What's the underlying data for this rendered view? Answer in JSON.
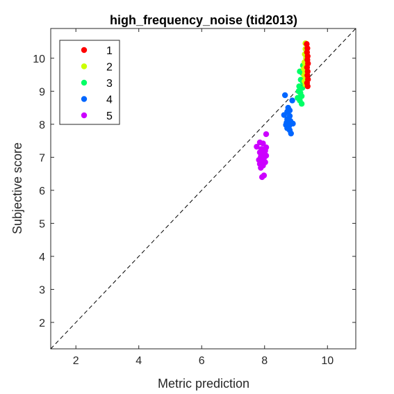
{
  "chart_data": {
    "type": "scatter",
    "title": "high_frequency_noise (tid2013)",
    "xlabel": "Metric prediction",
    "ylabel": "Subjective score",
    "xlim": [
      1.2,
      10.9
    ],
    "ylim": [
      1.2,
      10.9
    ],
    "xticks": [
      2,
      4,
      6,
      8,
      10
    ],
    "yticks": [
      2,
      3,
      4,
      5,
      6,
      7,
      8,
      9,
      10
    ],
    "grid": false,
    "legend_position": "top-left",
    "reference_line": "dashed diagonal y = x",
    "series": [
      {
        "name": "1",
        "color": "#ff0000",
        "points": [
          [
            9.34,
            10.43
          ],
          [
            9.36,
            10.3
          ],
          [
            9.35,
            10.18
          ],
          [
            9.37,
            10.06
          ],
          [
            9.36,
            9.95
          ],
          [
            9.38,
            9.84
          ],
          [
            9.35,
            9.72
          ],
          [
            9.37,
            9.6
          ],
          [
            9.36,
            9.48
          ],
          [
            9.38,
            9.36
          ],
          [
            9.35,
            9.25
          ],
          [
            9.37,
            9.15
          ]
        ]
      },
      {
        "name": "2",
        "color": "#ccff00",
        "points": [
          [
            9.3,
            10.45
          ],
          [
            9.3,
            10.28
          ],
          [
            9.28,
            10.12
          ],
          [
            9.32,
            10.0
          ],
          [
            9.27,
            9.88
          ],
          [
            9.3,
            9.78
          ],
          [
            9.25,
            9.68
          ],
          [
            9.29,
            9.58
          ],
          [
            9.26,
            9.48
          ],
          [
            9.31,
            9.4
          ],
          [
            9.27,
            9.3
          ],
          [
            9.3,
            9.2
          ]
        ]
      },
      {
        "name": "3",
        "color": "#00ff66",
        "points": [
          [
            9.22,
            9.78
          ],
          [
            9.12,
            9.6
          ],
          [
            9.2,
            9.55
          ],
          [
            9.27,
            9.5
          ],
          [
            9.15,
            9.35
          ],
          [
            9.22,
            9.28
          ],
          [
            9.1,
            9.15
          ],
          [
            9.2,
            9.1
          ],
          [
            9.08,
            9.0
          ],
          [
            9.14,
            8.95
          ],
          [
            9.18,
            8.85
          ],
          [
            9.05,
            8.8
          ],
          [
            9.12,
            8.72
          ],
          [
            9.18,
            8.62
          ]
        ]
      },
      {
        "name": "4",
        "color": "#0066ff",
        "points": [
          [
            8.65,
            8.88
          ],
          [
            8.88,
            8.72
          ],
          [
            8.75,
            8.5
          ],
          [
            8.8,
            8.42
          ],
          [
            8.72,
            8.38
          ],
          [
            8.62,
            8.28
          ],
          [
            8.8,
            8.25
          ],
          [
            8.72,
            8.15
          ],
          [
            8.82,
            8.1
          ],
          [
            8.7,
            8.05
          ],
          [
            8.9,
            8.02
          ],
          [
            8.68,
            7.98
          ],
          [
            8.78,
            7.95
          ],
          [
            8.72,
            7.88
          ],
          [
            8.8,
            7.82
          ],
          [
            8.84,
            7.72
          ]
        ]
      },
      {
        "name": "5",
        "color": "#cc00ff",
        "points": [
          [
            8.05,
            7.7
          ],
          [
            7.85,
            7.45
          ],
          [
            7.95,
            7.42
          ],
          [
            7.75,
            7.32
          ],
          [
            8.05,
            7.3
          ],
          [
            7.9,
            7.25
          ],
          [
            8.02,
            7.2
          ],
          [
            7.85,
            7.15
          ],
          [
            7.95,
            7.1
          ],
          [
            8.05,
            7.05
          ],
          [
            7.88,
            7.02
          ],
          [
            7.98,
            6.98
          ],
          [
            7.82,
            6.92
          ],
          [
            7.92,
            6.88
          ],
          [
            8.02,
            6.85
          ],
          [
            7.85,
            6.8
          ],
          [
            7.95,
            6.75
          ],
          [
            7.88,
            6.68
          ],
          [
            7.98,
            6.45
          ],
          [
            7.92,
            6.4
          ]
        ]
      }
    ]
  }
}
